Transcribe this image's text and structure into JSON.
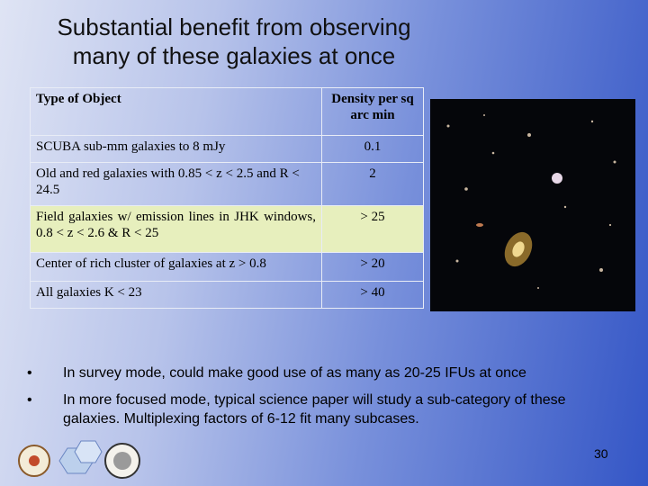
{
  "title": [
    "Substantial benefit from observing",
    "many of these galaxies at once"
  ],
  "table": {
    "header": [
      "Type of Object",
      "Density per sq arc min"
    ],
    "rows": [
      [
        "SCUBA sub-mm galaxies to 8 mJy",
        "0.1"
      ],
      [
        "Old and red galaxies with 0.85 < z < 2.5 and R < 24.5",
        "2"
      ],
      [
        "Field galaxies w/ emission lines in JHK windows,   0.8 < z < 2.6   &   R < 25",
        "> 25"
      ],
      [
        "Center of rich cluster of galaxies at z > 0.8",
        "> 20"
      ],
      [
        "All galaxies  K < 23",
        "> 40"
      ]
    ]
  },
  "bullets": [
    "In survey mode, could make good use of as many as 20-25 IFUs at once",
    "In more focused mode, typical science paper will study a sub-category of these galaxies.   Multiplexing factors of 6-12 fit many subcases."
  ],
  "page_number": "30"
}
